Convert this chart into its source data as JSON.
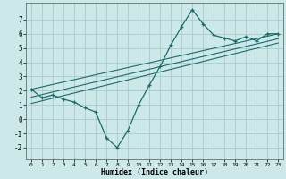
{
  "xlabel": "Humidex (Indice chaleur)",
  "ylabel": "",
  "xlim": [
    -0.5,
    23.5
  ],
  "ylim": [
    -2.8,
    8.2
  ],
  "xticks": [
    0,
    1,
    2,
    3,
    4,
    5,
    6,
    7,
    8,
    9,
    10,
    11,
    12,
    13,
    14,
    15,
    16,
    17,
    18,
    19,
    20,
    21,
    22,
    23
  ],
  "yticks": [
    -2,
    -1,
    0,
    1,
    2,
    3,
    4,
    5,
    6,
    7
  ],
  "bg_color": "#cde8e8",
  "grid_color": "#aacccc",
  "line_color": "#1a6b6b",
  "main_data_x": [
    0,
    1,
    2,
    3,
    4,
    5,
    6,
    7,
    8,
    9,
    10,
    11,
    12,
    13,
    14,
    15,
    16,
    17,
    18,
    19,
    20,
    21,
    22,
    23
  ],
  "main_data_y": [
    2.1,
    1.5,
    1.7,
    1.4,
    1.2,
    0.8,
    0.5,
    -1.3,
    -2.0,
    -0.8,
    1.0,
    2.4,
    3.7,
    5.2,
    6.5,
    7.7,
    6.7,
    5.9,
    5.7,
    5.5,
    5.8,
    5.5,
    6.0,
    6.0
  ],
  "reg_line1_x": [
    0,
    23
  ],
  "reg_line1_y": [
    1.55,
    5.65
  ],
  "reg_line2_x": [
    0,
    23
  ],
  "reg_line2_y": [
    2.1,
    6.0
  ],
  "reg_line3_x": [
    0,
    23
  ],
  "reg_line3_y": [
    1.1,
    5.35
  ]
}
